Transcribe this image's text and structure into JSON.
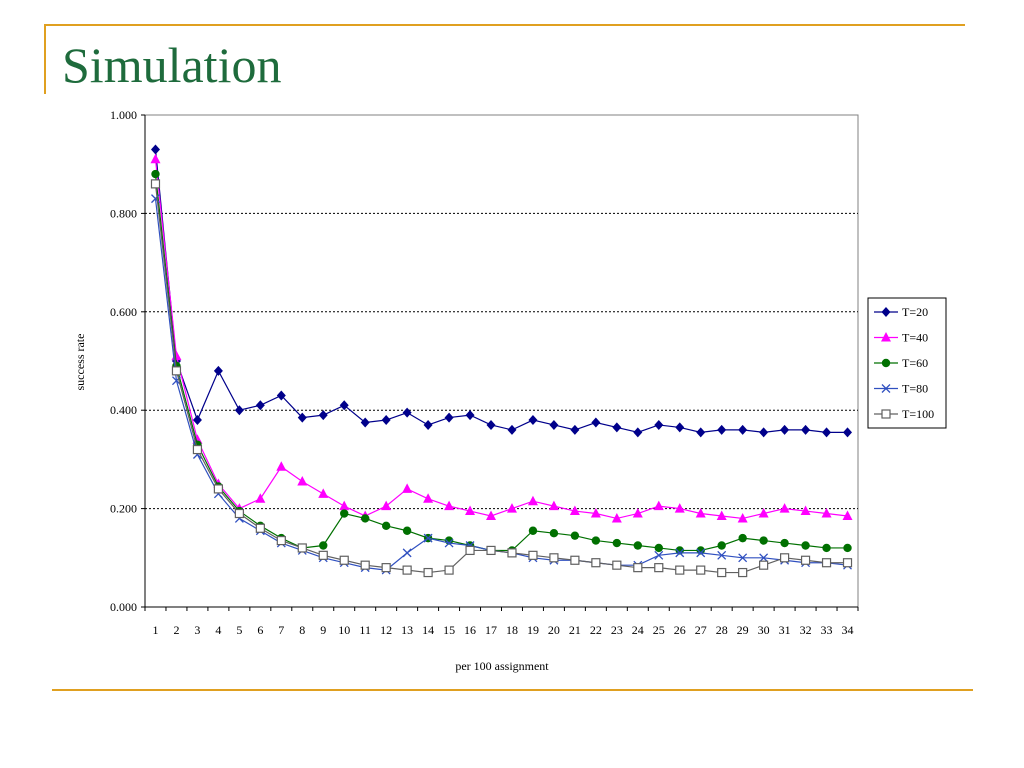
{
  "slide": {
    "title": "Simulation"
  },
  "chart_data": {
    "type": "line",
    "title": "",
    "xlabel": "per 100 assignment",
    "ylabel": "success rate",
    "ylim": [
      0,
      1
    ],
    "yticks": [
      "0.000",
      "0.200",
      "0.400",
      "0.600",
      "0.800",
      "1.000"
    ],
    "grid": "horizontal dotted",
    "legend": "right",
    "categories": [
      "1",
      "2",
      "3",
      "4",
      "5",
      "6",
      "7",
      "8",
      "9",
      "10",
      "11",
      "12",
      "13",
      "14",
      "15",
      "16",
      "17",
      "18",
      "19",
      "20",
      "21",
      "22",
      "23",
      "24",
      "25",
      "26",
      "27",
      "28",
      "29",
      "30",
      "31",
      "32",
      "33",
      "34"
    ],
    "series": [
      {
        "name": "T=20",
        "color": "#00008b",
        "marker": "diamond",
        "values": [
          0.93,
          0.5,
          0.38,
          0.48,
          0.4,
          0.41,
          0.43,
          0.385,
          0.39,
          0.41,
          0.375,
          0.38,
          0.395,
          0.37,
          0.385,
          0.39,
          0.37,
          0.36,
          0.38,
          0.37,
          0.36,
          0.375,
          0.365,
          0.355,
          0.37,
          0.365,
          0.355,
          0.36,
          0.36,
          0.355,
          0.36,
          0.36,
          0.355,
          0.355
        ]
      },
      {
        "name": "T=40",
        "color": "#ff00ff",
        "marker": "triangle",
        "values": [
          0.91,
          0.51,
          0.34,
          0.25,
          0.2,
          0.22,
          0.285,
          0.255,
          0.23,
          0.205,
          0.185,
          0.205,
          0.24,
          0.22,
          0.205,
          0.195,
          0.185,
          0.2,
          0.215,
          0.205,
          0.195,
          0.19,
          0.18,
          0.19,
          0.205,
          0.2,
          0.19,
          0.185,
          0.18,
          0.19,
          0.2,
          0.195,
          0.19,
          0.185
        ]
      },
      {
        "name": "T=60",
        "color": "#007000",
        "marker": "circle",
        "values": [
          0.88,
          0.49,
          0.33,
          0.245,
          0.195,
          0.165,
          0.14,
          0.12,
          0.125,
          0.19,
          0.18,
          0.165,
          0.155,
          0.14,
          0.135,
          0.125,
          0.115,
          0.115,
          0.155,
          0.15,
          0.145,
          0.135,
          0.13,
          0.125,
          0.12,
          0.115,
          0.115,
          0.125,
          0.14,
          0.135,
          0.13,
          0.125,
          0.12,
          0.12
        ]
      },
      {
        "name": "T=80",
        "color": "#3050c0",
        "marker": "x",
        "values": [
          0.83,
          0.46,
          0.31,
          0.23,
          0.18,
          0.155,
          0.13,
          0.115,
          0.1,
          0.09,
          0.08,
          0.075,
          0.11,
          0.14,
          0.13,
          0.125,
          0.115,
          0.11,
          0.1,
          0.095,
          0.095,
          0.09,
          0.085,
          0.085,
          0.105,
          0.11,
          0.11,
          0.105,
          0.1,
          0.1,
          0.095,
          0.09,
          0.09,
          0.085
        ]
      },
      {
        "name": "T=100",
        "color": "#606060",
        "marker": "square",
        "values": [
          0.86,
          0.48,
          0.32,
          0.24,
          0.19,
          0.16,
          0.135,
          0.12,
          0.105,
          0.095,
          0.085,
          0.08,
          0.075,
          0.07,
          0.075,
          0.115,
          0.115,
          0.11,
          0.105,
          0.1,
          0.095,
          0.09,
          0.085,
          0.08,
          0.08,
          0.075,
          0.075,
          0.07,
          0.07,
          0.085,
          0.1,
          0.095,
          0.09,
          0.09
        ]
      }
    ]
  }
}
